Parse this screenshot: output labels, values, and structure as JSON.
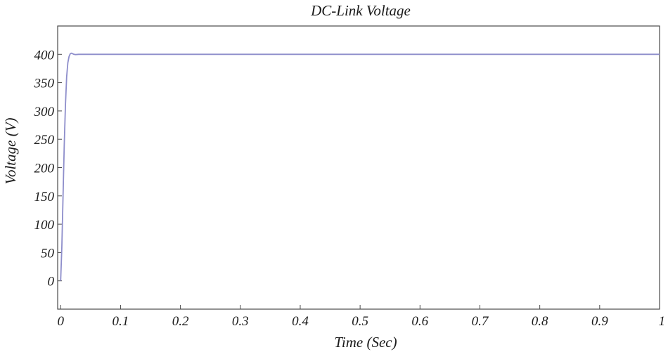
{
  "chart_data": {
    "type": "line",
    "title": "DC-Link Voltage",
    "xlabel": "Time (Sec)",
    "ylabel": "Voltage (V)",
    "xlim": [
      -0.005,
      1.0
    ],
    "ylim": [
      -50,
      450
    ],
    "xticks": [
      0,
      0.1,
      0.2,
      0.3,
      0.4,
      0.5,
      0.6,
      0.7,
      0.8,
      0.9,
      1
    ],
    "xtick_labels": [
      "0",
      "0.1",
      "0.2",
      "0.3",
      "0.4",
      "0.5",
      "0.6",
      "0.7",
      "0.8",
      "0.9",
      "1"
    ],
    "yticks": [
      0,
      50,
      100,
      150,
      200,
      250,
      300,
      350,
      400
    ],
    "ytick_labels": [
      "0",
      "50",
      "100",
      "150",
      "200",
      "250",
      "300",
      "350",
      "400"
    ],
    "grid": false,
    "series": [
      {
        "color": "#8e8ecb",
        "x": [
          0,
          0.002,
          0.004,
          0.006,
          0.008,
          0.01,
          0.012,
          0.014,
          0.016,
          0.018,
          0.02,
          0.022,
          0.025,
          0.03,
          0.05,
          0.1,
          0.2,
          0.3,
          0.4,
          0.5,
          0.6,
          0.7,
          0.8,
          0.9,
          1.0
        ],
        "y": [
          0,
          60,
          150,
          240,
          310,
          360,
          385,
          396,
          401,
          402,
          401,
          400,
          399.5,
          400,
          400,
          400,
          400,
          400,
          400,
          400,
          400,
          400,
          400,
          400,
          400
        ]
      }
    ]
  }
}
